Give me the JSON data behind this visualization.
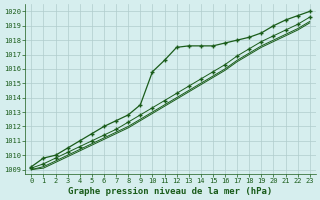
{
  "title": "Graphe pression niveau de la mer (hPa)",
  "bg_color": "#d6eeee",
  "plot_bg_color": "#d6eeee",
  "grid_color": "#b0cccc",
  "line_color": "#1a5c1a",
  "marker_color": "#1a5c1a",
  "xlim_min": -0.5,
  "xlim_max": 23.5,
  "ylim_min": 1008.7,
  "ylim_max": 1020.5,
  "yticks": [
    1009,
    1010,
    1011,
    1012,
    1013,
    1014,
    1015,
    1016,
    1017,
    1018,
    1019,
    1020
  ],
  "xticks": [
    0,
    1,
    2,
    3,
    4,
    5,
    6,
    7,
    8,
    9,
    10,
    11,
    12,
    13,
    14,
    15,
    16,
    17,
    18,
    19,
    20,
    21,
    22,
    23
  ],
  "series1": [
    1009.2,
    1009.8,
    1010.0,
    1010.5,
    1011.0,
    1011.5,
    1012.0,
    1012.4,
    1012.8,
    1013.5,
    1015.8,
    1016.6,
    1017.5,
    1017.6,
    1017.6,
    1017.6,
    1017.8,
    1018.0,
    1018.2,
    1018.5,
    1019.0,
    1019.4,
    1019.7,
    1020.0
  ],
  "series2": [
    1009.1,
    1009.4,
    1009.8,
    1010.2,
    1010.6,
    1011.0,
    1011.4,
    1011.8,
    1012.3,
    1012.8,
    1013.3,
    1013.8,
    1014.3,
    1014.8,
    1015.3,
    1015.8,
    1016.3,
    1016.9,
    1017.4,
    1017.9,
    1018.3,
    1018.7,
    1019.1,
    1019.6
  ],
  "series3": [
    1009.0,
    1009.2,
    1009.6,
    1010.0,
    1010.4,
    1010.8,
    1011.2,
    1011.6,
    1012.0,
    1012.5,
    1013.0,
    1013.5,
    1014.0,
    1014.5,
    1015.0,
    1015.5,
    1016.0,
    1016.6,
    1017.1,
    1017.6,
    1018.0,
    1018.4,
    1018.8,
    1019.3
  ],
  "series4": [
    1009.0,
    1009.1,
    1009.5,
    1009.9,
    1010.3,
    1010.7,
    1011.1,
    1011.5,
    1011.9,
    1012.4,
    1012.9,
    1013.4,
    1013.9,
    1014.4,
    1014.9,
    1015.4,
    1015.9,
    1016.5,
    1017.0,
    1017.5,
    1017.9,
    1018.3,
    1018.7,
    1019.2
  ]
}
